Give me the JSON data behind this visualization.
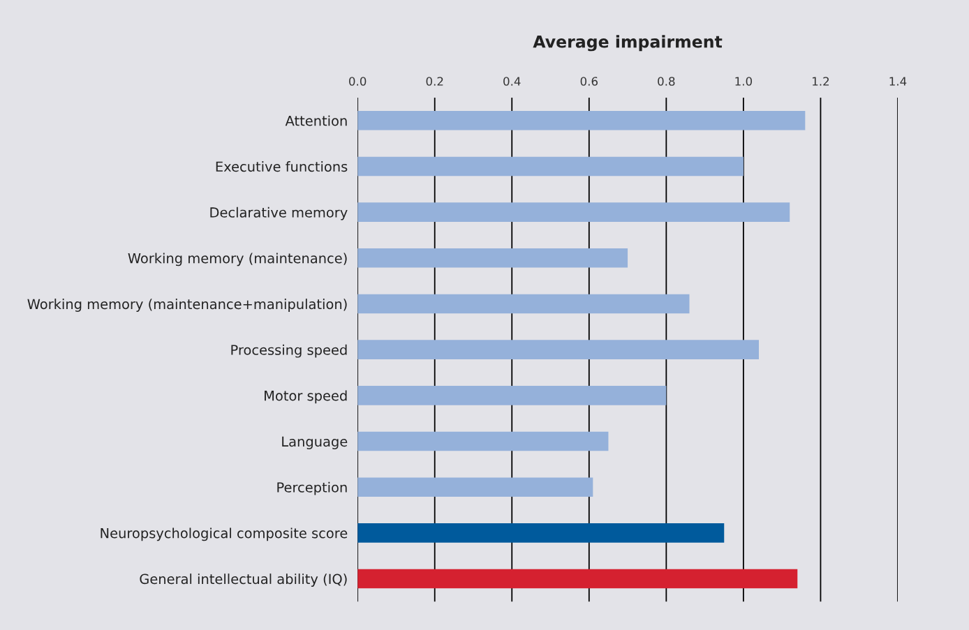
{
  "chart_data": {
    "type": "bar",
    "orientation": "horizontal",
    "xlabel": "Average impairment",
    "categories": [
      "Attention",
      "Executive functions",
      "Declarative memory",
      "Working memory (maintenance)",
      "Working memory (maintenance+manipulation)",
      "Processing speed",
      "Motor speed",
      "Language",
      "Perception",
      "Neuropsychological composite score",
      "General intellectual ability (IQ)"
    ],
    "values": [
      1.16,
      1.0,
      1.12,
      0.7,
      0.86,
      1.04,
      0.8,
      0.65,
      0.61,
      0.95,
      1.14
    ],
    "colors": [
      "#95b1da",
      "#95b1da",
      "#95b1da",
      "#95b1da",
      "#95b1da",
      "#95b1da",
      "#95b1da",
      "#95b1da",
      "#95b1da",
      "#005a9c",
      "#d52130"
    ],
    "xlim": [
      0,
      1.4
    ],
    "xticks": [
      {
        "value": 0,
        "label": "0.0"
      },
      {
        "value": 0.2,
        "label": "0.2"
      },
      {
        "value": 0.4,
        "label": "0.4"
      },
      {
        "value": 0.6,
        "label": "0.6"
      },
      {
        "value": 0.8,
        "label": "0.8"
      },
      {
        "value": 1.0,
        "label": "1.0"
      },
      {
        "value": 1.2,
        "label": "1.2"
      },
      {
        "value": 1.4,
        "label": "1.4"
      }
    ],
    "grid": "x"
  }
}
